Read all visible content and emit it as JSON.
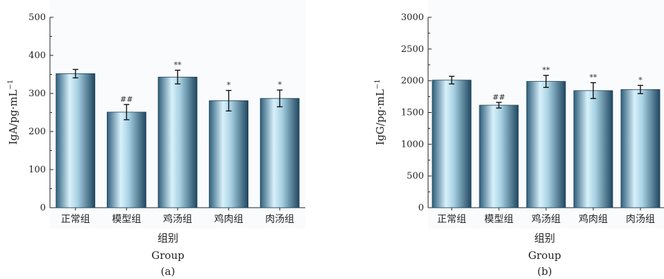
{
  "chart_data": [
    {
      "type": "bar",
      "panel_label": "(a)",
      "categories": [
        "正常组",
        "模型组",
        "鸡汤组",
        "鸡肉组",
        "肉汤组"
      ],
      "values": [
        352,
        251,
        343,
        281,
        287
      ],
      "errors": [
        11,
        20,
        18,
        27,
        22
      ],
      "significance": [
        "",
        "##",
        "**",
        "*",
        "*"
      ],
      "ylabel": "IgA/pg·mL",
      "ylabel_sup": "−1",
      "xlabel_cn": "组别",
      "xlabel_en": "Group",
      "ylim": [
        0,
        500
      ],
      "yticks": [
        "0",
        "100",
        "200",
        "300",
        "400",
        "500"
      ],
      "ytick_values": [
        0,
        100,
        200,
        300,
        400,
        500
      ]
    },
    {
      "type": "bar",
      "panel_label": "(b)",
      "categories": [
        "正常组",
        "模型组",
        "鸡汤组",
        "鸡肉组",
        "肉汤组"
      ],
      "values": [
        2010,
        1615,
        1990,
        1845,
        1862
      ],
      "errors": [
        60,
        45,
        95,
        125,
        65
      ],
      "significance": [
        "",
        "##",
        "**",
        "**",
        "*"
      ],
      "ylabel": "IgG/pg·mL",
      "ylabel_sup": "−1",
      "xlabel_cn": "组别",
      "xlabel_en": "Group",
      "ylim": [
        0,
        3000
      ],
      "yticks": [
        "0",
        "500",
        "1000",
        "1500",
        "2000",
        "2500",
        "3000"
      ],
      "ytick_values": [
        0,
        500,
        1000,
        1500,
        2000,
        2500,
        3000
      ]
    }
  ],
  "colors": {
    "bar_edge": "#1d3f55",
    "bar_dark": "#2f5f7c",
    "bar_light": "#d8f1fb",
    "axis": "#222222"
  }
}
